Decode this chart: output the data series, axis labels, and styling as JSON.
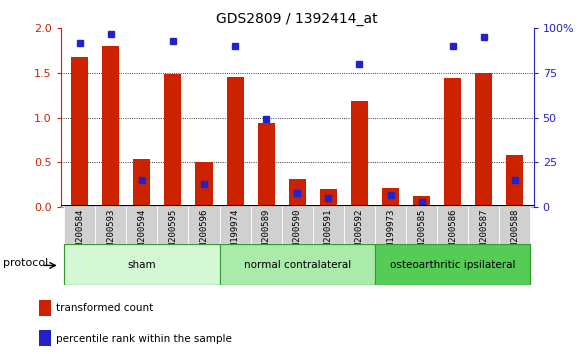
{
  "title": "GDS2809 / 1392414_at",
  "samples": [
    "GSM200584",
    "GSM200593",
    "GSM200594",
    "GSM200595",
    "GSM200596",
    "GSM199974",
    "GSM200589",
    "GSM200590",
    "GSM200591",
    "GSM200592",
    "GSM199973",
    "GSM200585",
    "GSM200586",
    "GSM200587",
    "GSM200588"
  ],
  "transformed_count": [
    1.68,
    1.8,
    0.54,
    1.49,
    0.5,
    1.45,
    0.94,
    0.31,
    0.2,
    1.19,
    0.21,
    0.12,
    1.44,
    1.5,
    0.58
  ],
  "percentile_rank": [
    92,
    97,
    15,
    93,
    13,
    90,
    49,
    8,
    5,
    80,
    7,
    3,
    90,
    95,
    15
  ],
  "groups": [
    {
      "label": "sham",
      "start": 0,
      "end": 5
    },
    {
      "label": "normal contralateral",
      "start": 5,
      "end": 10
    },
    {
      "label": "osteoarthritic ipsilateral",
      "start": 10,
      "end": 15
    }
  ],
  "group_colors": [
    "#d4f7d4",
    "#aaeaaa",
    "#55cc55"
  ],
  "protocol_label": "protocol",
  "legend_items": [
    {
      "label": "transformed count",
      "color": "#cc2200"
    },
    {
      "label": "percentile rank within the sample",
      "color": "#2222cc"
    }
  ],
  "ylim_left": [
    0,
    2
  ],
  "ylim_right": [
    0,
    100
  ],
  "yticks_left": [
    0,
    0.5,
    1.0,
    1.5,
    2.0
  ],
  "yticks_right": [
    0,
    25,
    50,
    75,
    100
  ],
  "yticklabels_right": [
    "0",
    "25",
    "50",
    "75",
    "100%"
  ],
  "bar_color_red": "#cc2200",
  "bar_color_blue": "#2222cc",
  "bar_width": 0.55,
  "xtick_bg": "#d0d0d0"
}
